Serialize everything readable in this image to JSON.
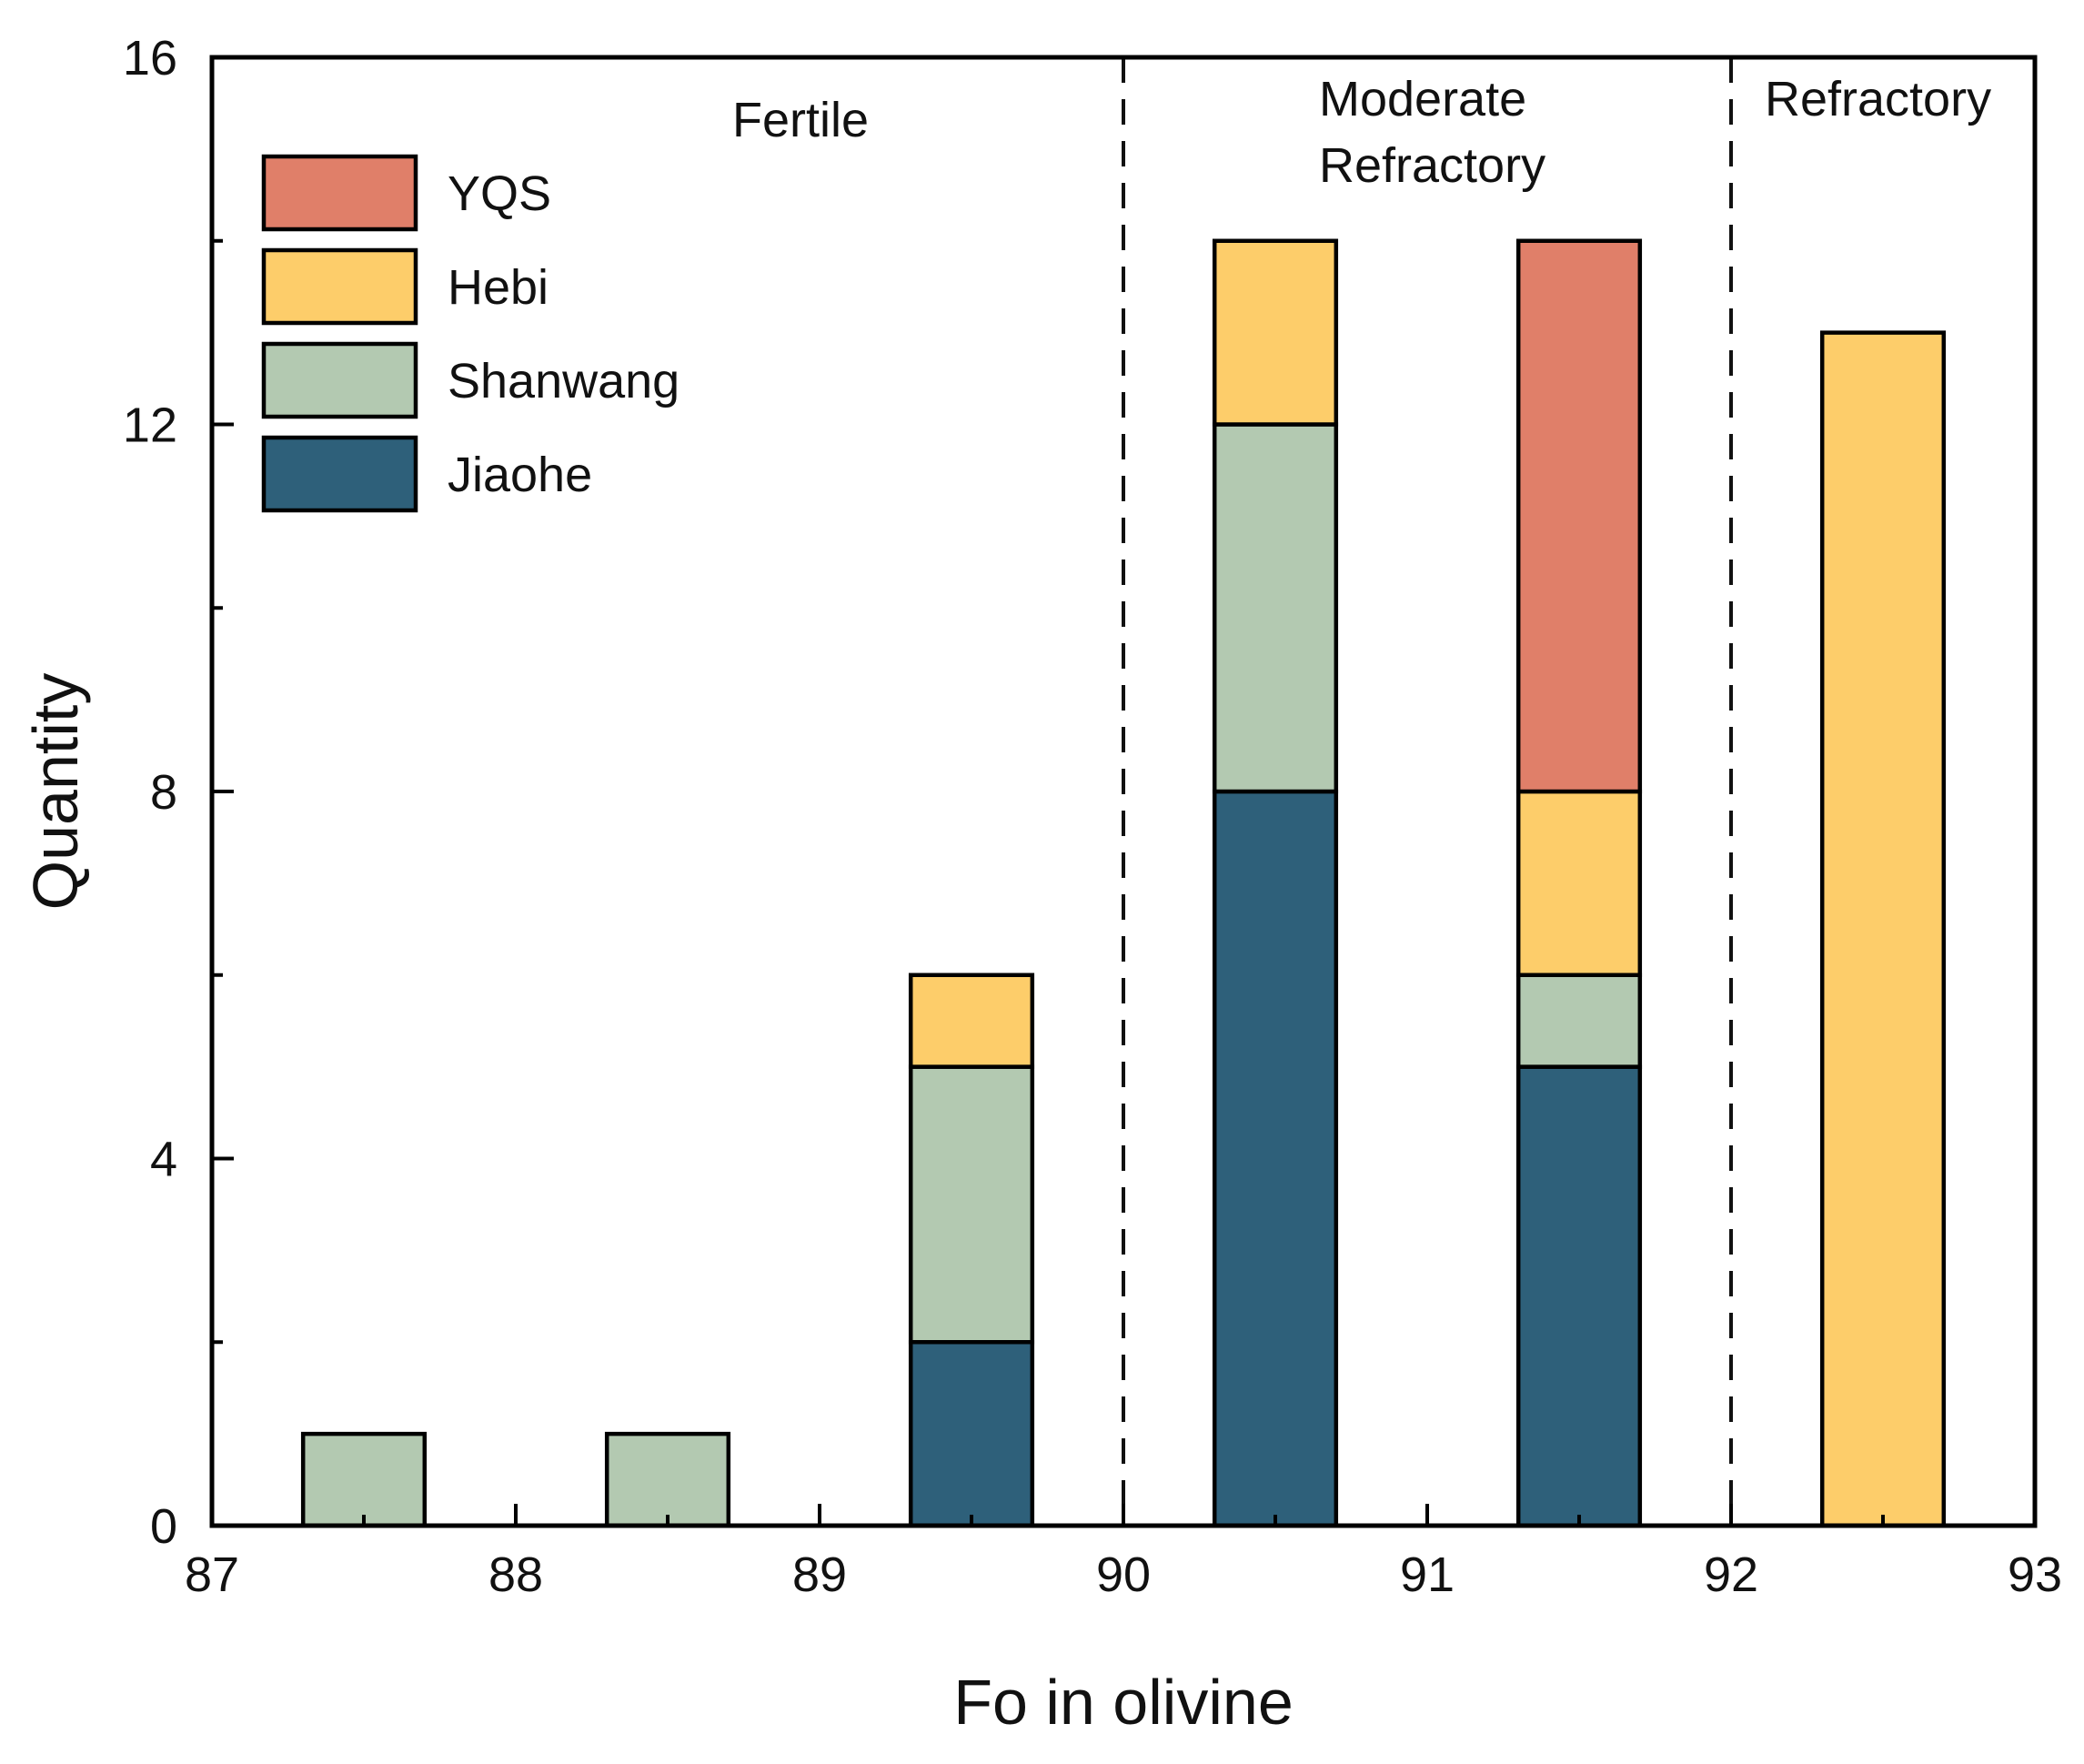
{
  "chart_data": {
    "type": "bar",
    "stacked": true,
    "title": "",
    "xlabel": "Fo in olivine",
    "ylabel": "Quantity",
    "xlim": [
      87,
      93
    ],
    "ylim": [
      0,
      16
    ],
    "x_ticks": [
      "87",
      "88",
      "89",
      "90",
      "91",
      "92",
      "93"
    ],
    "y_ticks": [
      "0",
      "4",
      "8",
      "12",
      "16"
    ],
    "bin_width": 1,
    "bins": [
      [
        87,
        88
      ],
      [
        88,
        89
      ],
      [
        89,
        90
      ],
      [
        90,
        91
      ],
      [
        91,
        92
      ],
      [
        92,
        93
      ]
    ],
    "series": [
      {
        "name": "Jiaohe",
        "color": "#2e607a",
        "values": [
          0,
          0,
          2,
          8,
          5,
          0
        ]
      },
      {
        "name": "Shanwang",
        "color": "#b3c9b1",
        "values": [
          1,
          1,
          3,
          4,
          1,
          0
        ]
      },
      {
        "name": "Hebi",
        "color": "#fdcd6a",
        "values": [
          0,
          0,
          1,
          2,
          2,
          13
        ]
      },
      {
        "name": "YQS",
        "color": "#e07f69",
        "values": [
          0,
          0,
          0,
          0,
          6,
          0
        ]
      }
    ],
    "legend_order": [
      "YQS",
      "Hebi",
      "Shanwang",
      "Jiaohe"
    ],
    "legend_position": "top-left",
    "divider_lines": [
      90,
      92
    ],
    "zones": [
      {
        "lines": [
          "Fertile"
        ]
      },
      {
        "lines": [
          "Moderate",
          "Refractory"
        ]
      },
      {
        "lines": [
          "Refractory"
        ]
      }
    ],
    "grid": false
  }
}
